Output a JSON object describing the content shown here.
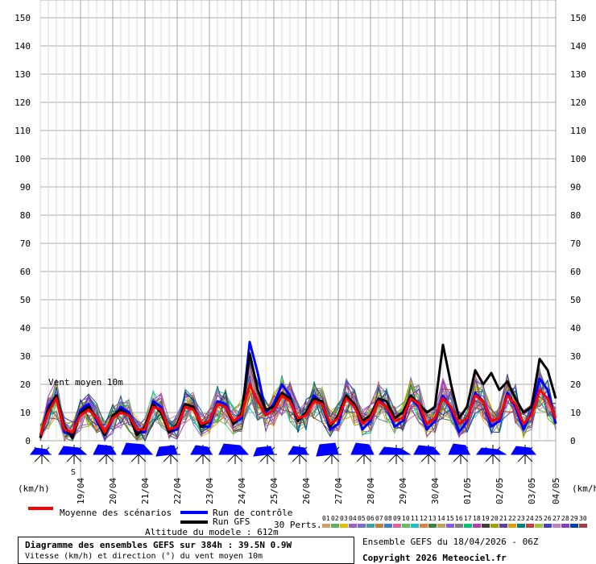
{
  "chart_data": {
    "type": "line",
    "title": "Diagramme des ensembles GEFS sur 384h : 39.5N 0.9W",
    "subtitle": "Vitesse (km/h) et direction (°) du vent moyen 10m",
    "ylabel_left": "(km/h)",
    "ylabel_right": "(km/h)",
    "series_label": "Vent moyen 10m",
    "ylim": [
      0,
      150
    ],
    "yticks": [
      0,
      10,
      20,
      30,
      40,
      50,
      60,
      70,
      80,
      90,
      100,
      110,
      120,
      130,
      140,
      150
    ],
    "xlim": [
      0,
      64
    ],
    "date_ticks": [
      {
        "x": 5,
        "label": "19/04"
      },
      {
        "x": 9,
        "label": "20/04"
      },
      {
        "x": 13,
        "label": "21/04"
      },
      {
        "x": 17,
        "label": "22/04"
      },
      {
        "x": 21,
        "label": "23/04"
      },
      {
        "x": 25,
        "label": "24/04"
      },
      {
        "x": 29,
        "label": "25/04"
      },
      {
        "x": 33,
        "label": "26/04"
      },
      {
        "x": 37,
        "label": "27/04"
      },
      {
        "x": 41,
        "label": "28/04"
      },
      {
        "x": 45,
        "label": "29/04"
      },
      {
        "x": 49,
        "label": "30/04"
      },
      {
        "x": 53,
        "label": "01/05"
      },
      {
        "x": 57,
        "label": "02/05"
      },
      {
        "x": 61,
        "label": "03/05"
      },
      {
        "x": 65,
        "label": "04/05"
      }
    ],
    "series": [
      {
        "name": "Moyenne des scénarios",
        "color": "#ff0000",
        "width": 3,
        "values": [
          2,
          10,
          15,
          4,
          3,
          9,
          11,
          8,
          3,
          8,
          10,
          9,
          4,
          4,
          12,
          11,
          4,
          5,
          12,
          11,
          6,
          7,
          13,
          12,
          7,
          9,
          20,
          14,
          9,
          11,
          16,
          14,
          8,
          9,
          14,
          13,
          6,
          8,
          15,
          12,
          6,
          8,
          14,
          12,
          7,
          8,
          15,
          13,
          6,
          8,
          15,
          12,
          6,
          8,
          16,
          14,
          7,
          8,
          16,
          13,
          6,
          9,
          18,
          15,
          8
        ]
      },
      {
        "name": "Run de contrôle",
        "color": "#0000ff",
        "width": 3,
        "values": [
          1,
          12,
          16,
          3,
          2,
          11,
          13,
          7,
          2,
          8,
          12,
          10,
          3,
          3,
          14,
          12,
          3,
          4,
          13,
          12,
          5,
          5,
          14,
          13,
          6,
          8,
          35,
          24,
          10,
          13,
          20,
          16,
          7,
          10,
          16,
          13,
          4,
          6,
          16,
          13,
          4,
          7,
          15,
          12,
          5,
          7,
          15,
          12,
          4,
          7,
          16,
          11,
          3,
          7,
          17,
          14,
          5,
          7,
          17,
          12,
          4,
          10,
          22,
          18,
          6
        ]
      },
      {
        "name": "Run GFS",
        "color": "#000000",
        "width": 3,
        "values": [
          1,
          11,
          16,
          5,
          1,
          10,
          12,
          8,
          2,
          9,
          11,
          9,
          2,
          5,
          13,
          10,
          3,
          6,
          13,
          12,
          5,
          7,
          13,
          12,
          6,
          10,
          31,
          18,
          11,
          12,
          17,
          15,
          7,
          10,
          15,
          14,
          5,
          9,
          16,
          13,
          7,
          9,
          15,
          14,
          8,
          10,
          16,
          13,
          10,
          12,
          34,
          20,
          8,
          12,
          25,
          20,
          24,
          18,
          21,
          15,
          10,
          12,
          29,
          25,
          15
        ]
      }
    ],
    "perturbations": 30,
    "legend": {
      "mean": "Moyenne des scénarios",
      "control": "Run de contrôle",
      "gfs": "Run GFS",
      "perts": "30 Perts."
    }
  },
  "footer": {
    "altitude": "Altitude du modele : 612m",
    "ensemble": "Ensemble GEFS du 18/04/2026 - 06Z",
    "copyright": "Copyright 2026 Meteociel.fr"
  },
  "wind_roses": {
    "dirs": [
      "S",
      "S",
      "S",
      "S",
      "SE",
      "S",
      "S",
      "SE",
      "S",
      "SE",
      "S",
      "S",
      "S",
      "S",
      "S",
      "S"
    ],
    "label": "S"
  },
  "colors": {
    "grid": "#aaaaaa",
    "wind_rose": "#0000ff",
    "pert_palette": [
      "#d4a060",
      "#60b060",
      "#e0c000",
      "#a060c0",
      "#7070d0",
      "#40a0a0",
      "#c08040",
      "#4080c0",
      "#e060a0",
      "#60c060",
      "#20c0c0",
      "#e08040",
      "#408040",
      "#c0a060",
      "#8060e0",
      "#808080",
      "#00c080",
      "#b040b0",
      "#404040",
      "#a0a000",
      "#6040a0",
      "#e0a000",
      "#008080",
      "#c04040",
      "#a0c040",
      "#4040c0",
      "#c080c0",
      "#8040c0",
      "#0040a0",
      "#a04040"
    ],
    "pert_numbers": [
      "01",
      "02",
      "03",
      "04",
      "05",
      "06",
      "07",
      "08",
      "09",
      "10",
      "11",
      "12",
      "13",
      "14",
      "15",
      "16",
      "17",
      "18",
      "19",
      "20",
      "21",
      "22",
      "23",
      "24",
      "25",
      "26",
      "27",
      "28",
      "29",
      "30"
    ]
  }
}
